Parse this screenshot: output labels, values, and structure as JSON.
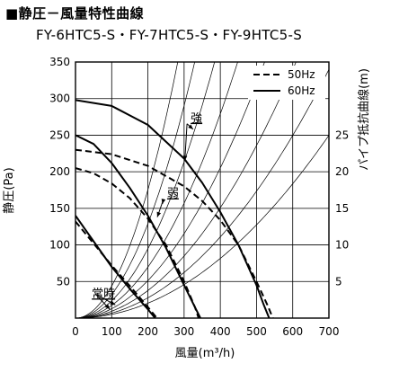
{
  "title": "■静圧－風量特性曲線",
  "subtitle": "FY-6HTC5-S・FY-7HTC5-S・FY-9HTC5-S",
  "chart_data": {
    "type": "line",
    "xlabel": "風量(m³/h)",
    "ylabel": "静圧(Pa)",
    "y2label": "パイプ抵抗曲線(m)",
    "xlim": [
      0,
      700
    ],
    "ylim": [
      0,
      350
    ],
    "xticks": [
      0,
      100,
      200,
      300,
      400,
      500,
      600,
      700
    ],
    "yticks": [
      50,
      100,
      150,
      200,
      250,
      300,
      350
    ],
    "y2ticks": [
      {
        "label": "5",
        "at": 50
      },
      {
        "label": "10",
        "at": 100
      },
      {
        "label": "15",
        "at": 150
      },
      {
        "label": "20",
        "at": 200
      },
      {
        "label": "25",
        "at": 250
      }
    ],
    "grid": true,
    "legend": [
      {
        "label": "50Hz",
        "style": "dashed"
      },
      {
        "label": "60Hz",
        "style": "solid"
      }
    ],
    "annotations": [
      {
        "text": "強",
        "x": 318,
        "y": 268
      },
      {
        "text": "弱",
        "x": 253,
        "y": 165
      },
      {
        "text": "常時",
        "x": 45,
        "y": 28
      }
    ],
    "pipe_resistance_curves_m": [
      5,
      10,
      15,
      20,
      25,
      30,
      35,
      40
    ],
    "series": [
      {
        "style": "solid",
        "level": "強",
        "x": [
          0,
          100,
          200,
          300,
          350,
          400,
          450,
          500,
          520,
          535
        ],
        "y": [
          298,
          290,
          264,
          218,
          185,
          145,
          100,
          45,
          18,
          0
        ]
      },
      {
        "style": "dashed",
        "level": "強",
        "x": [
          0,
          100,
          200,
          300,
          350,
          400,
          450,
          500,
          530,
          545
        ],
        "y": [
          230,
          224,
          208,
          180,
          160,
          134,
          100,
          50,
          18,
          0
        ]
      },
      {
        "style": "solid",
        "level": "弱",
        "x": [
          0,
          50,
          100,
          150,
          200,
          250,
          300,
          330,
          345
        ],
        "y": [
          250,
          238,
          212,
          178,
          140,
          96,
          45,
          15,
          0
        ]
      },
      {
        "style": "dashed",
        "level": "弱",
        "x": [
          0,
          50,
          100,
          150,
          200,
          250,
          300,
          330,
          340
        ],
        "y": [
          205,
          198,
          184,
          164,
          136,
          100,
          50,
          15,
          0
        ]
      },
      {
        "style": "solid",
        "level": "常時",
        "x": [
          0,
          50,
          100,
          150,
          200,
          220
        ],
        "y": [
          140,
          105,
          70,
          40,
          12,
          0
        ]
      },
      {
        "style": "dashed",
        "level": "常時",
        "x": [
          0,
          50,
          100,
          150,
          200,
          225
        ],
        "y": [
          132,
          102,
          72,
          44,
          15,
          0
        ]
      }
    ]
  }
}
